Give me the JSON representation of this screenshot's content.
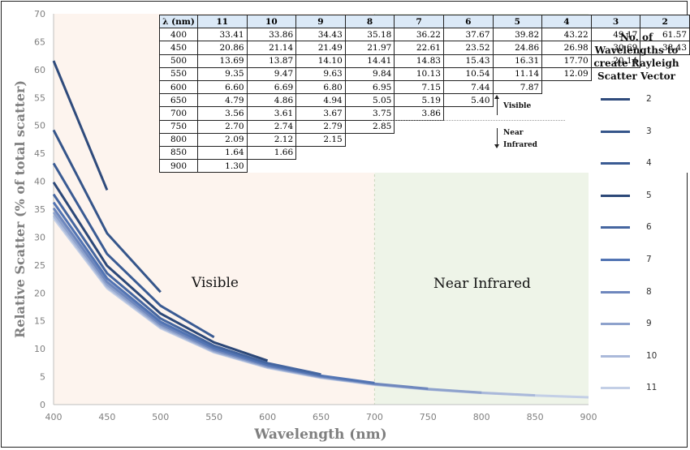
{
  "chart_data": {
    "type": "line",
    "xlabel": "Wavelength (nm)",
    "ylabel": "Relative Scatter (% of total scatter)",
    "xlim": [
      400,
      900
    ],
    "ylim": [
      0,
      70
    ],
    "xticks": [
      400,
      450,
      500,
      550,
      600,
      650,
      700,
      750,
      800,
      850,
      900
    ],
    "yticks": [
      0,
      5,
      10,
      15,
      20,
      25,
      30,
      35,
      40,
      45,
      50,
      55,
      60,
      65,
      70
    ],
    "grid": false,
    "regions": [
      {
        "label": "Visible",
        "from": 400,
        "to": 700,
        "color": "#fdf4ee"
      },
      {
        "label": "Near Infrared",
        "from": 700,
        "to": 900,
        "color": "#eef4e8"
      }
    ],
    "legend": {
      "title": "No. of Wavelengths to create Rayleigh Scatter Vector",
      "position": "right"
    },
    "table": {
      "header": [
        "λ (nm)",
        "11",
        "10",
        "9",
        "8",
        "7",
        "6",
        "5",
        "4",
        "3",
        "2"
      ],
      "rows": [
        [
          "400",
          "33.41",
          "33.86",
          "34.43",
          "35.18",
          "36.22",
          "37.67",
          "39.82",
          "43.22",
          "49.17",
          "61.57"
        ],
        [
          "450",
          "20.86",
          "21.14",
          "21.49",
          "21.97",
          "22.61",
          "23.52",
          "24.86",
          "26.98",
          "30.69",
          "38.43"
        ],
        [
          "500",
          "13.69",
          "13.87",
          "14.10",
          "14.41",
          "14.83",
          "15.43",
          "16.31",
          "17.70",
          "20.14",
          ""
        ],
        [
          "550",
          "9.35",
          "9.47",
          "9.63",
          "9.84",
          "10.13",
          "10.54",
          "11.14",
          "12.09",
          "",
          ""
        ],
        [
          "600",
          "6.60",
          "6.69",
          "6.80",
          "6.95",
          "7.15",
          "7.44",
          "7.87",
          "",
          "",
          ""
        ],
        [
          "650",
          "4.79",
          "4.86",
          "4.94",
          "5.05",
          "5.19",
          "5.40",
          "",
          "",
          "",
          ""
        ],
        [
          "700",
          "3.56",
          "3.61",
          "3.67",
          "3.75",
          "3.86",
          "",
          "",
          "",
          "",
          ""
        ],
        [
          "750",
          "2.70",
          "2.74",
          "2.79",
          "2.85",
          "",
          "",
          "",
          "",
          "",
          ""
        ],
        [
          "800",
          "2.09",
          "2.12",
          "2.15",
          "",
          "",
          "",
          "",
          "",
          "",
          ""
        ],
        [
          "850",
          "1.64",
          "1.66",
          "",
          "",
          "",
          "",
          "",
          "",
          "",
          ""
        ],
        [
          "900",
          "1.30",
          "",
          "",
          "",
          "",
          "",
          "",
          "",
          "",
          ""
        ]
      ]
    },
    "table_annotations": {
      "up": "Visible",
      "down": "Near Infrared"
    },
    "series": [
      {
        "name": "2",
        "color": "#2f4b7c",
        "x": [
          400,
          450
        ],
        "values": [
          61.57,
          38.43
        ]
      },
      {
        "name": "3",
        "color": "#35558a",
        "x": [
          400,
          450,
          500
        ],
        "values": [
          49.17,
          30.69,
          20.14
        ]
      },
      {
        "name": "4",
        "color": "#3a5b93",
        "x": [
          400,
          450,
          500,
          550
        ],
        "values": [
          43.22,
          26.98,
          17.7,
          12.09
        ]
      },
      {
        "name": "5",
        "color": "#2c4878",
        "x": [
          400,
          450,
          500,
          550,
          600
        ],
        "values": [
          39.82,
          24.86,
          16.31,
          11.14,
          7.87
        ]
      },
      {
        "name": "6",
        "color": "#4566a0",
        "x": [
          400,
          450,
          500,
          550,
          600,
          650
        ],
        "values": [
          37.67,
          23.52,
          15.43,
          10.54,
          7.44,
          5.4
        ]
      },
      {
        "name": "7",
        "color": "#5274b3",
        "x": [
          400,
          450,
          500,
          550,
          600,
          650,
          700
        ],
        "values": [
          36.22,
          22.61,
          14.83,
          10.13,
          7.15,
          5.19,
          3.86
        ]
      },
      {
        "name": "8",
        "color": "#6e87bd",
        "x": [
          400,
          450,
          500,
          550,
          600,
          650,
          700,
          750
        ],
        "values": [
          35.18,
          21.97,
          14.41,
          9.84,
          6.95,
          5.05,
          3.75,
          2.85
        ]
      },
      {
        "name": "9",
        "color": "#8ea2cc",
        "x": [
          400,
          450,
          500,
          550,
          600,
          650,
          700,
          750,
          800
        ],
        "values": [
          34.43,
          21.49,
          14.1,
          9.63,
          6.8,
          4.94,
          3.67,
          2.79,
          2.15
        ]
      },
      {
        "name": "10",
        "color": "#aab9da",
        "x": [
          400,
          450,
          500,
          550,
          600,
          650,
          700,
          750,
          800,
          850
        ],
        "values": [
          33.86,
          21.14,
          13.87,
          9.47,
          6.69,
          4.86,
          3.61,
          2.74,
          2.12,
          1.66
        ]
      },
      {
        "name": "11",
        "color": "#c3cfe6",
        "x": [
          400,
          450,
          500,
          550,
          600,
          650,
          700,
          750,
          800,
          850,
          900
        ],
        "values": [
          33.41,
          20.86,
          13.69,
          9.35,
          6.6,
          4.79,
          3.56,
          2.7,
          2.09,
          1.64,
          1.3
        ]
      }
    ]
  }
}
